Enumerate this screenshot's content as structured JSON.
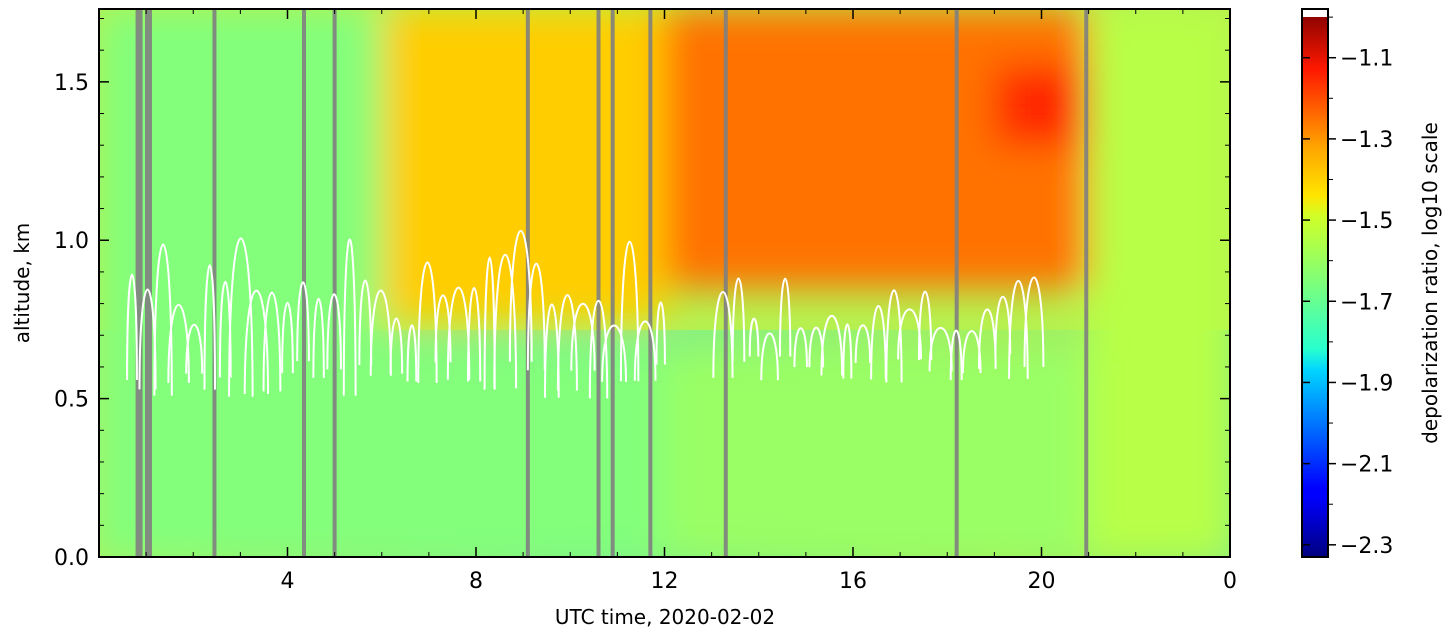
{
  "chart_data": {
    "type": "heatmap",
    "title": "",
    "xlabel": "UTC time,  2020-02-02",
    "ylabel": "altitude, km",
    "colorbar_label": "depolarization ratio, log10 scale",
    "x_ticks": [
      "4",
      "8",
      "12",
      "16",
      "20",
      "0"
    ],
    "x_tick_values": [
      4,
      8,
      12,
      16,
      20,
      24
    ],
    "xlim": [
      0,
      24
    ],
    "y_ticks": [
      "0.0",
      "0.5",
      "1.0",
      "1.5"
    ],
    "y_tick_values": [
      0.0,
      0.5,
      1.0,
      1.5
    ],
    "ylim": [
      0,
      1.73
    ],
    "colorbar_ticks": [
      "-1.1",
      "-1.3",
      "-1.5",
      "-1.7",
      "-1.9",
      "-2.1",
      "-2.3"
    ],
    "colorbar_tick_values": [
      -1.1,
      -1.3,
      -1.5,
      -1.7,
      -1.9,
      -2.1,
      -2.3
    ],
    "colorbar_range": [
      -2.33,
      -0.98
    ],
    "colormap": "jet",
    "missing_data_color": "#808080",
    "cloud_contour_color": "#ffffff",
    "missing_data_times": [
      0.85,
      1.05,
      2.45,
      4.35,
      5.0,
      9.1,
      10.6,
      10.9,
      11.7,
      13.3,
      18.2,
      20.95
    ],
    "regions": [
      {
        "x_range": [
          0,
          6
        ],
        "alt_range": [
          0,
          1.73
        ],
        "approx_value": -1.65
      },
      {
        "x_range": [
          6,
          12
        ],
        "alt_range": [
          0,
          0.65
        ],
        "approx_value": -1.65
      },
      {
        "x_range": [
          6,
          12
        ],
        "alt_range": [
          0.75,
          1.73
        ],
        "approx_value": -1.42
      },
      {
        "x_range": [
          12,
          21
        ],
        "alt_range": [
          0,
          0.65
        ],
        "approx_value": -1.62
      },
      {
        "x_range": [
          12,
          21
        ],
        "alt_range": [
          0.85,
          1.73
        ],
        "approx_value": -1.3
      },
      {
        "x_range": [
          19,
          21
        ],
        "alt_range": [
          1.3,
          1.55
        ],
        "approx_value": -1.2
      },
      {
        "x_range": [
          21,
          24
        ],
        "alt_range": [
          0,
          1.73
        ],
        "approx_value": -1.58
      }
    ]
  }
}
